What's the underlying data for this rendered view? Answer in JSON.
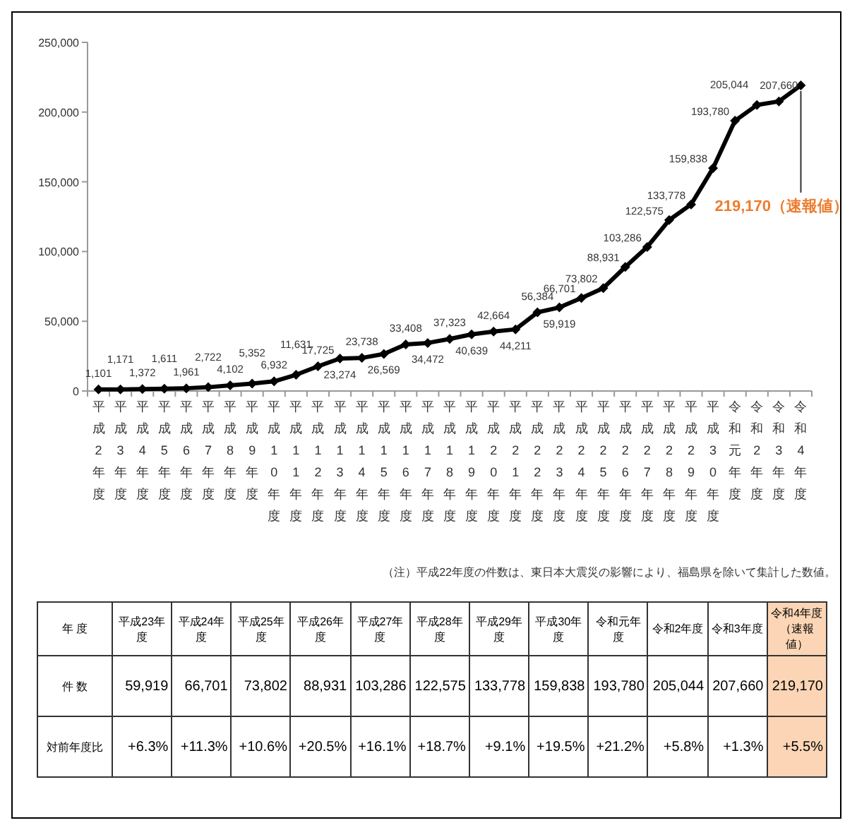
{
  "chart_data": [
    {
      "type": "line",
      "color": "#000000",
      "marker": "diamond",
      "line_style": "solid",
      "categories": [
        "平成2年度",
        "平成3年度",
        "平成4年度",
        "平成5年度",
        "平成6年度",
        "平成7年度",
        "平成8年度",
        "平成9年度",
        "平成10年度",
        "平成11年度",
        "平成12年度",
        "平成13年度",
        "平成14年度",
        "平成15年度",
        "平成16年度",
        "平成17年度",
        "平成18年度",
        "平成19年度",
        "平成20年度",
        "平成21年度",
        "平成22年度",
        "平成23年度",
        "平成24年度",
        "平成25年度",
        "平成26年度",
        "平成27年度",
        "平成28年度",
        "平成29年度",
        "平成30年度",
        "令和元年度",
        "令和2年度",
        "令和3年度",
        "令和4年度"
      ],
      "values": [
        1101,
        1171,
        1372,
        1611,
        1961,
        2722,
        4102,
        5352,
        6932,
        11631,
        17725,
        23274,
        23738,
        26569,
        33408,
        34472,
        37323,
        40639,
        42664,
        44211,
        56384,
        59919,
        66701,
        73802,
        88931,
        103286,
        122575,
        133778,
        159838,
        193780,
        205044,
        207660,
        219170
      ],
      "value_labels": [
        "1,101",
        "1,171",
        "1,372",
        "1,611",
        "1,961",
        "2,722",
        "4,102",
        "5,352",
        "6,932",
        "11,631",
        "17,725",
        "23,274",
        "23,738",
        "26,569",
        "33,408",
        "34,472",
        "37,323",
        "40,639",
        "42,664",
        "44,211",
        "56,384",
        "59,919",
        "66,701",
        "73,802",
        "88,931",
        "103,286",
        "122,575",
        "133,778",
        "159,838",
        "193,780",
        "205,044",
        "207,660",
        null
      ],
      "ylim": [
        0,
        250000
      ],
      "yticks": [
        {
          "value": 0,
          "label": "0"
        },
        {
          "value": 50000,
          "label": "50,000"
        },
        {
          "value": 100000,
          "label": "100,000"
        },
        {
          "value": 150000,
          "label": "150,000"
        },
        {
          "value": 200000,
          "label": "200,000"
        },
        {
          "value": 250000,
          "label": "250,000"
        }
      ],
      "annotations": [
        {
          "text": "219,170（速報値）",
          "x": "令和4年度",
          "y": 219170
        },
        "（注）平成22年度の件数は、東日本大震災の影響により、福島県を除いて集計した数値。"
      ]
    },
    {
      "type": "other",
      "xlabel": "年 度",
      "categories": [
        "平成23年度",
        "平成24年度",
        "平成25年度",
        "平成26年度",
        "平成27年度",
        "平成28年度",
        "平成29年度",
        "平成30年度",
        "令和元年度",
        "令和2年度",
        "令和3年度",
        "令和4年度（速報値）"
      ],
      "y_categories": [
        "件 数",
        "対前年度比"
      ],
      "cell_labels": [
        [
          "59,919",
          "66,701",
          "73,802",
          "88,931",
          "103,286",
          "122,575",
          "133,778",
          "159,838",
          "193,780",
          "205,044",
          "207,660",
          "219,170"
        ],
        [
          "+6.3%",
          "+11.3%",
          "+10.6%",
          "+20.5%",
          "+16.1%",
          "+18.7%",
          "+9.1%",
          "+19.5%",
          "+21.2%",
          "+5.8%",
          "+1.3%",
          "+5.5%"
        ]
      ],
      "colors": [
        null,
        null,
        null,
        null,
        null,
        null,
        null,
        null,
        null,
        null,
        null,
        "#fbd5b5"
      ]
    }
  ]
}
